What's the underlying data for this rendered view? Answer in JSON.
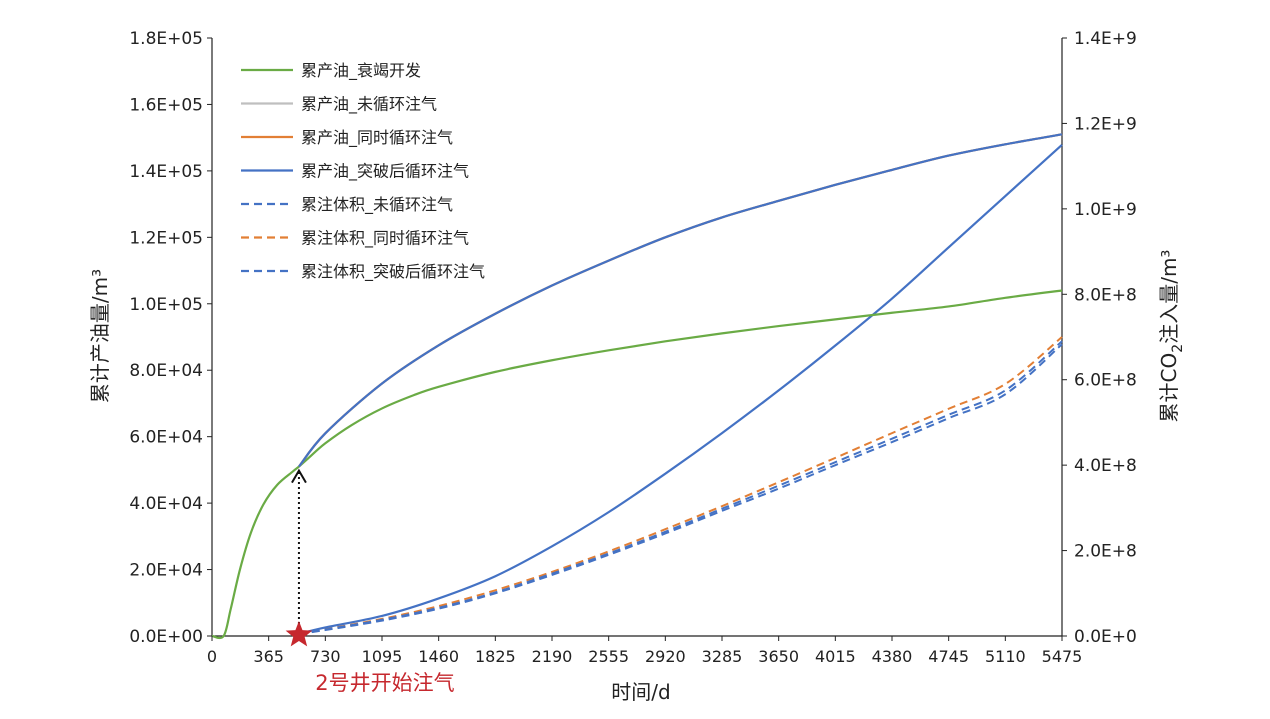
{
  "colors": {
    "green": "#6aab45",
    "gray": "#bfbfbf",
    "orange": "#e27f35",
    "blue": "#4472c4",
    "star": "#c6282e",
    "annotation_text": "#c6282e"
  },
  "chart_data": {
    "type": "line",
    "xlabel": "时间/d",
    "ylabel_left": "累计产油量/m³",
    "ylabel_right_parts": {
      "a": "累计CO",
      "sub": "2",
      "b": "注入量/m³"
    },
    "xlim": [
      0,
      5475
    ],
    "ylim_left": [
      0,
      180000
    ],
    "ylim_right": [
      0,
      1400000000
    ],
    "x_ticks": [
      0,
      365,
      730,
      1095,
      1460,
      1825,
      2190,
      2555,
      2920,
      3285,
      3650,
      4015,
      4380,
      4745,
      5110,
      5475
    ],
    "x_tick_labels": [
      "0",
      "365",
      "730",
      "1095",
      "1460",
      "1825",
      "2190",
      "2555",
      "2920",
      "3285",
      "3650",
      "4015",
      "4380",
      "4745",
      "5110",
      "5475"
    ],
    "y_left_ticks": [
      0,
      20000,
      40000,
      60000,
      80000,
      100000,
      120000,
      140000,
      160000,
      180000
    ],
    "y_left_tick_labels": [
      "0.0E+00",
      "2.0E+04",
      "4.0E+04",
      "6.0E+04",
      "8.0E+04",
      "1.0E+05",
      "1.2E+05",
      "1.4E+05",
      "1.6E+05",
      "1.8E+05"
    ],
    "y_right_ticks": [
      0,
      200000000,
      400000000,
      600000000,
      800000000,
      1000000000,
      1200000000,
      1400000000
    ],
    "y_right_tick_labels": [
      "0.0E+0",
      "2.0E+8",
      "4.0E+8",
      "6.0E+8",
      "8.0E+8",
      "1.0E+9",
      "1.2E+9",
      "1.4E+9"
    ],
    "legend_position": "top-left",
    "series": [
      {
        "name": "累产油_衰竭开发",
        "axis": "left",
        "style": "solid",
        "color": "#6aab45",
        "x": [
          0,
          75,
          120,
          180,
          250,
          330,
          420,
          520,
          560,
          620,
          730,
          900,
          1095,
          1300,
          1460,
          1825,
          2190,
          2555,
          2920,
          3285,
          3650,
          4015,
          4380,
          4745,
          5110,
          5475
        ],
        "y": [
          0,
          0,
          8000,
          20000,
          31000,
          39500,
          45500,
          49500,
          51000,
          53500,
          58000,
          63500,
          68500,
          72500,
          75000,
          79500,
          83000,
          86000,
          88700,
          91100,
          93300,
          95300,
          97300,
          99200,
          101800,
          104000
        ]
      },
      {
        "name": "累产油_未循环注气",
        "axis": "left",
        "style": "solid",
        "color": "#bfbfbf",
        "x": [
          560,
          730,
          1095,
          1460,
          1825,
          2190,
          2555,
          2920,
          3285,
          3650,
          4015,
          4380,
          4745,
          5110,
          5475
        ],
        "y": [
          51000,
          61000,
          76000,
          87500,
          97000,
          105500,
          113000,
          120000,
          126000,
          131000,
          135800,
          140300,
          144600,
          148000,
          151000
        ]
      },
      {
        "name": "累产油_同时循环注气",
        "axis": "left",
        "style": "solid",
        "color": "#e27f35",
        "x": [
          560,
          730,
          1095,
          1460,
          1825,
          2190,
          2555,
          2920,
          3285,
          3650,
          4015,
          4380,
          4745,
          5110,
          5475
        ],
        "y": [
          51000,
          61000,
          76000,
          87500,
          97000,
          105500,
          113000,
          120000,
          126000,
          131000,
          135800,
          140300,
          144600,
          148000,
          151000
        ]
      },
      {
        "name": "累产油_突破后循环注气",
        "axis": "left",
        "style": "solid",
        "color": "#4472c4",
        "x": [
          560,
          730,
          1095,
          1460,
          1825,
          2190,
          2555,
          2920,
          3285,
          3650,
          4015,
          4380,
          4745,
          5110,
          5475
        ],
        "y": [
          51000,
          61000,
          76000,
          87500,
          97000,
          105500,
          113000,
          120000,
          126000,
          131000,
          135800,
          140300,
          144600,
          148000,
          151000
        ]
      },
      {
        "name": "累注体积_未循环注气",
        "axis": "right",
        "style": "dashed",
        "color": "#4472c4",
        "x": [
          560,
          730,
          1095,
          1460,
          1825,
          2190,
          2555,
          2920,
          3285,
          3650,
          4015,
          4380,
          4745,
          5110,
          5475
        ],
        "y": [
          5000000,
          14000000,
          36000000,
          64000000,
          100000000,
          143000000,
          190000000,
          240000000,
          293000000,
          345000000,
          400000000,
          454000000,
          510000000,
          566000000,
          683000000
        ]
      },
      {
        "name": "累注体积_同时循环注气",
        "axis": "right",
        "style": "dashed",
        "color": "#e27f35",
        "x": [
          560,
          730,
          1095,
          1460,
          1825,
          2190,
          2555,
          2920,
          3285,
          3650,
          4015,
          4380,
          4745,
          5110,
          5475
        ],
        "y": [
          5000000,
          16000000,
          40000000,
          70000000,
          107000000,
          150000000,
          198000000,
          250000000,
          304000000,
          360000000,
          417000000,
          475000000,
          532000000,
          590000000,
          700000000
        ]
      },
      {
        "name": "累注体积_突破后循环注气",
        "axis": "right",
        "style": "dashed",
        "color": "#4472c4",
        "x": [
          560,
          730,
          1095,
          1460,
          1825,
          2190,
          2555,
          2920,
          3285,
          3650,
          4015,
          4380,
          4745,
          5110,
          5475
        ],
        "y": [
          5000000,
          15000000,
          38000000,
          66000000,
          102000000,
          146000000,
          193000000,
          244000000,
          298000000,
          352000000,
          407000000,
          462000000,
          518000000,
          575000000,
          690000000
        ]
      },
      {
        "name": "",
        "axis": "right",
        "style": "solid",
        "color": "#4472c4",
        "x": [
          560,
          730,
          1095,
          1460,
          1825,
          2190,
          2555,
          2920,
          3285,
          3650,
          4015,
          4380,
          4745,
          5110,
          5475
        ],
        "y": [
          5000000,
          20000000,
          47000000,
          88000000,
          140000000,
          210000000,
          290000000,
          380000000,
          475000000,
          575000000,
          680000000,
          790000000,
          910000000,
          1030000000,
          1150000000
        ]
      }
    ],
    "annotation": {
      "text": "2号井开始注气",
      "x": 560,
      "marker": "star"
    }
  }
}
